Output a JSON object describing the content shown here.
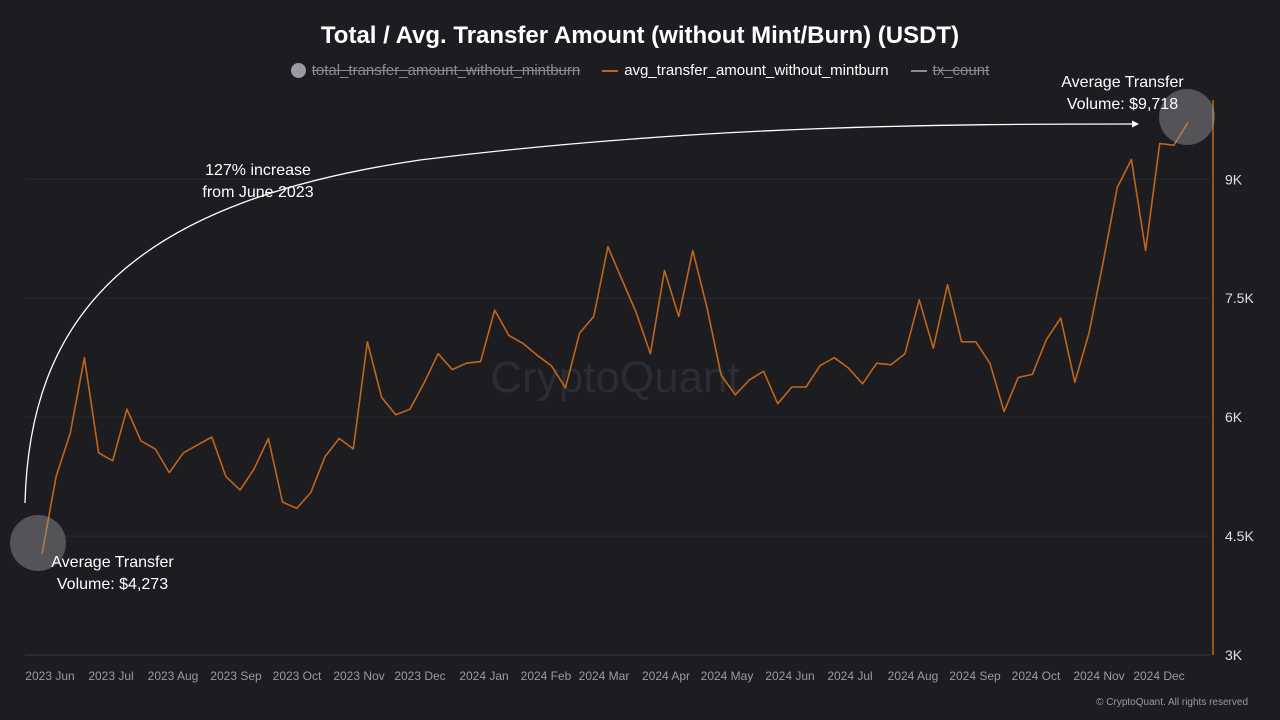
{
  "title": "Total / Avg. Transfer Amount (without Mint/Burn) (USDT)",
  "legend": [
    {
      "label": "total_transfer_amount_without_mintburn",
      "state": "hidden",
      "marker": "dot",
      "color": "#9a9aa2"
    },
    {
      "label": "avg_transfer_amount_without_mintburn",
      "state": "visible",
      "marker": "line",
      "color": "#c0661c"
    },
    {
      "label": "tx_count",
      "state": "hidden",
      "marker": "line",
      "color": "#8a8a90"
    }
  ],
  "annotations": {
    "start_label": "Average Transfer Volume: $4,273",
    "start_line1": "Average Transfer",
    "start_line2": "Volume: $4,273",
    "end_line1": "Average Transfer",
    "end_line2": "Volume: $9,718",
    "increase_line1": "127% increase",
    "increase_line2": "from June 2023"
  },
  "watermark": "CryptoQuant",
  "footer": "© CryptoQuant. All rights reserved",
  "colors": {
    "background": "#1c1c21",
    "series": "#c0661c",
    "axis": "#c0661c",
    "grid": "#2a2a30"
  },
  "chart_data": {
    "type": "line",
    "title": "Total / Avg. Transfer Amount (without Mint/Burn) (USDT)",
    "xlabel": "",
    "ylabel": "",
    "ylim": [
      3000,
      10000
    ],
    "yticks": [
      "3K",
      "4.5K",
      "6K",
      "7.5K",
      "9K"
    ],
    "ytick_values": [
      3000,
      4500,
      6000,
      7500,
      9000
    ],
    "xticks": [
      "2023 Jun",
      "2023 Jul",
      "2023 Aug",
      "2023 Sep",
      "2023 Oct",
      "2023 Nov",
      "2023 Dec",
      "2024 Jan",
      "2024 Feb",
      "2024 Mar",
      "2024 Apr",
      "2024 May",
      "2024 Jun",
      "2024 Jul",
      "2024 Aug",
      "2024 Sep",
      "2024 Oct",
      "2024 Nov",
      "2024 Dec"
    ],
    "grid": true,
    "legend_position": "top",
    "series": [
      {
        "name": "avg_transfer_amount_without_mintburn",
        "values": [
          4273,
          5250,
          5800,
          6750,
          5550,
          5450,
          6100,
          5700,
          5600,
          5300,
          5550,
          5650,
          5750,
          5250,
          5080,
          5350,
          5730,
          4930,
          4850,
          5050,
          5500,
          5730,
          5600,
          6950,
          6250,
          6030,
          6100,
          6430,
          6800,
          6600,
          6680,
          6700,
          7350,
          7030,
          6930,
          6780,
          6650,
          6370,
          7060,
          7270,
          8150,
          7730,
          7320,
          6800,
          7850,
          7270,
          8100,
          7380,
          6530,
          6280,
          6470,
          6580,
          6170,
          6380,
          6380,
          6650,
          6750,
          6620,
          6420,
          6680,
          6660,
          6800,
          7480,
          6870,
          7670,
          6950,
          6950,
          6680,
          6070,
          6500,
          6540,
          6980,
          7250,
          6440,
          7060,
          7950,
          8900,
          9250,
          8100,
          9450,
          9430,
          9718
        ]
      }
    ]
  }
}
